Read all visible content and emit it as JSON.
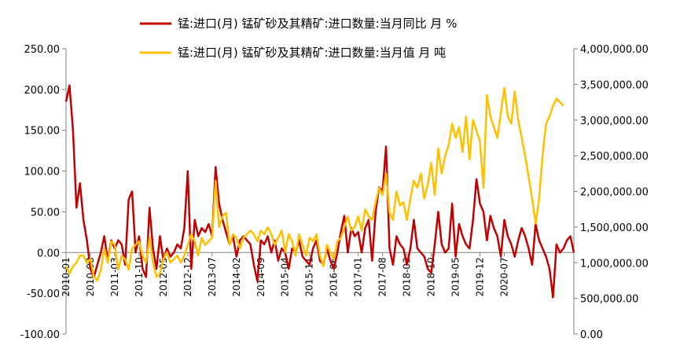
{
  "chart_data": {
    "type": "line",
    "legend": {
      "position": "top",
      "entries": [
        {
          "label": "锰:进口(月) 锰矿砂及其精矿:进口数量:当月同比 月 %",
          "color": "#C00000"
        },
        {
          "label": "锰:进口(月) 锰矿砂及其精矿:进口数量:当月值 月 吨",
          "color": "#FFC000"
        }
      ]
    },
    "y_left": {
      "ylim": [
        -100,
        250
      ],
      "ticks": [
        250,
        200,
        150,
        100,
        50,
        0,
        -50,
        -100
      ],
      "tick_labels": [
        "250.00",
        "200.00",
        "150.00",
        "100.00",
        "50.00",
        "0.00",
        "-50.00",
        "-100.00"
      ]
    },
    "y_right": {
      "ylim": [
        0,
        4000000
      ],
      "ticks": [
        4000000,
        3500000,
        3000000,
        2500000,
        2000000,
        1500000,
        1000000,
        500000,
        0
      ],
      "tick_labels": [
        "4,000,000.00",
        "3,500,000.00",
        "3,000,000.00",
        "2,500,000.00",
        "2,000,000.00",
        "1,500,000.00",
        "1,000,000.00",
        "500,000.00",
        "0.00"
      ]
    },
    "x_axis": {
      "start": "2010-01",
      "tick_labels": [
        "2010-01",
        "2010-08",
        "2011-03",
        "2011-10",
        "2012-05",
        "2012-12",
        "2013-07",
        "2014-02",
        "2014-09",
        "2015-04",
        "2015-11",
        "2016-06",
        "2017-01",
        "2017-08",
        "2018-03",
        "2018-10",
        "2019-05",
        "2019-12",
        "2020-07"
      ]
    },
    "series": [
      {
        "name": "锰:进口(月) 锰矿砂及其精矿:进口数量:当月同比 月 %",
        "axis": "left",
        "color": "#C00000",
        "values": [
          185,
          205,
          150,
          55,
          85,
          40,
          15,
          -20,
          -30,
          -15,
          0,
          20,
          -10,
          15,
          5,
          15,
          10,
          -15,
          65,
          75,
          0,
          20,
          -20,
          -30,
          55,
          5,
          -20,
          20,
          -10,
          5,
          -5,
          0,
          10,
          5,
          30,
          100,
          -20,
          40,
          20,
          30,
          25,
          35,
          20,
          105,
          60,
          40,
          25,
          10,
          20,
          -5,
          15,
          20,
          15,
          10,
          -15,
          -35,
          15,
          10,
          20,
          0,
          15,
          -10,
          5,
          0,
          -20,
          5,
          0,
          15,
          -5,
          -10,
          -15,
          5,
          15,
          -10,
          -15,
          5,
          -10,
          -20,
          0,
          25,
          45,
          0,
          30,
          20,
          25,
          0,
          30,
          40,
          -10,
          50,
          80,
          75,
          130,
          5,
          -15,
          20,
          10,
          5,
          -15,
          5,
          40,
          5,
          0,
          -5,
          -20,
          -25,
          10,
          50,
          10,
          0,
          5,
          60,
          -5,
          35,
          20,
          10,
          5,
          40,
          90,
          60,
          50,
          15,
          45,
          30,
          20,
          -5,
          40,
          20,
          10,
          -5,
          15,
          30,
          20,
          5,
          -15,
          35,
          15,
          5,
          -5,
          -20,
          -55,
          10,
          0,
          5,
          15,
          20,
          0
        ]
      },
      {
        "name": "锰:进口(月) 锰矿砂及其精矿:进口数量:当月值 月 吨",
        "axis": "right",
        "color": "#FFC000",
        "values": [
          950000,
          850000,
          950000,
          1000000,
          1100000,
          1100000,
          1000000,
          1050000,
          800000,
          750000,
          900000,
          1200000,
          1000000,
          1300000,
          1250000,
          900000,
          1100000,
          1050000,
          900000,
          1200000,
          1250000,
          1300000,
          1100000,
          1000000,
          1350000,
          1000000,
          800000,
          850000,
          1050000,
          1150000,
          1000000,
          1050000,
          1100000,
          1000000,
          1100000,
          1250000,
          1400000,
          1300000,
          1100000,
          1350000,
          1250000,
          1300000,
          1350000,
          2150000,
          1500000,
          1650000,
          1700000,
          1250000,
          1400000,
          1350000,
          1200000,
          1350000,
          1400000,
          1450000,
          1400000,
          1300000,
          1450000,
          1400000,
          1500000,
          1400000,
          1250000,
          1350000,
          1450000,
          1150000,
          1400000,
          1300000,
          1100000,
          1400000,
          1250000,
          1100000,
          1350000,
          1300000,
          1400000,
          1100000,
          950000,
          1250000,
          1150000,
          1050000,
          1300000,
          1350000,
          1500000,
          1650000,
          1450000,
          1500000,
          1650000,
          1450000,
          1750000,
          1650000,
          1600000,
          1850000,
          2050000,
          1950000,
          2250000,
          1700000,
          1600000,
          2000000,
          1800000,
          1850000,
          1600000,
          1900000,
          2150000,
          2050000,
          2250000,
          1900000,
          2100000,
          2400000,
          1950000,
          2600000,
          2250000,
          2500000,
          2650000,
          2950000,
          2750000,
          2900000,
          2550000,
          3050000,
          2450000,
          3000000,
          2850000,
          2700000,
          2050000,
          3350000,
          3050000,
          2900000,
          2750000,
          3100000,
          3450000,
          3050000,
          2950000,
          3400000,
          3000000,
          2750000,
          2500000,
          2200000,
          1900000,
          1550000,
          1900000,
          2500000,
          2950000,
          3050000,
          3200000,
          3300000,
          3250000,
          3200000
        ]
      }
    ]
  }
}
